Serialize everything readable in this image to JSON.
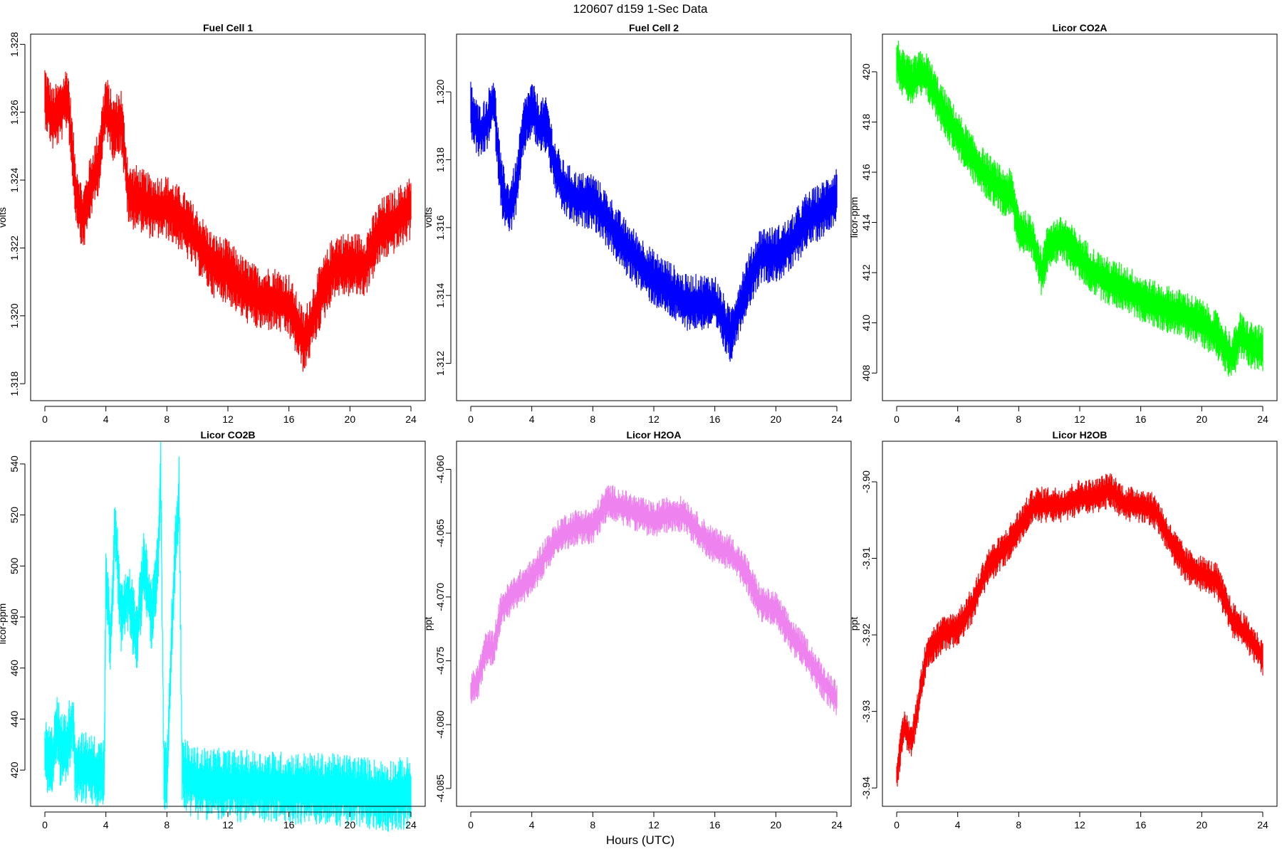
{
  "figure": {
    "title": "120607   d159   1-Sec Data",
    "xlabel": "Hours (UTC)"
  },
  "chart_data": [
    {
      "type": "line",
      "title": "Fuel Cell 1",
      "xlabel": "",
      "ylabel": "volts",
      "color": "#ff0000",
      "xlim": [
        0,
        24
      ],
      "ylim": [
        1.3175,
        1.3283
      ],
      "x_ticks": [
        0,
        4,
        8,
        12,
        16,
        20,
        24
      ],
      "y_ticks": [
        "1.318",
        "1.320",
        "1.322",
        "1.324",
        "1.326",
        "1.328"
      ],
      "grid": false,
      "series": [
        {
          "x": [
            0,
            0.5,
            1,
            1.5,
            2,
            2.5,
            3,
            3.5,
            4,
            4.5,
            5,
            5.5,
            6,
            7,
            8,
            9,
            10,
            11,
            12,
            13,
            14,
            15,
            16,
            17,
            18,
            19,
            20,
            21,
            22,
            23,
            24
          ],
          "values": [
            1.3265,
            1.3258,
            1.326,
            1.3265,
            1.3238,
            1.3228,
            1.3238,
            1.3245,
            1.3262,
            1.3255,
            1.3258,
            1.3235,
            1.3235,
            1.3232,
            1.3232,
            1.3228,
            1.3222,
            1.3215,
            1.3213,
            1.3208,
            1.3205,
            1.3205,
            1.3203,
            1.3192,
            1.3205,
            1.3215,
            1.3215,
            1.3215,
            1.3225,
            1.3228,
            1.3232
          ],
          "spread": 0.0008
        }
      ]
    },
    {
      "type": "line",
      "title": "Fuel Cell 2",
      "xlabel": "",
      "ylabel": "volts",
      "color": "#0000ff",
      "xlim": [
        0,
        24
      ],
      "ylim": [
        1.3109,
        1.3217
      ],
      "x_ticks": [
        0,
        4,
        8,
        12,
        16,
        20,
        24
      ],
      "y_ticks": [
        "1.312",
        "1.314",
        "1.316",
        "1.318",
        "1.320"
      ],
      "grid": false,
      "series": [
        {
          "x": [
            0,
            0.5,
            1,
            1.5,
            2,
            2.5,
            3,
            3.5,
            4,
            4.5,
            5,
            5.5,
            6,
            7,
            8,
            9,
            10,
            11,
            12,
            13,
            14,
            15,
            16,
            17,
            18,
            19,
            20,
            21,
            22,
            23,
            24
          ],
          "values": [
            1.3195,
            1.3188,
            1.319,
            1.3198,
            1.3172,
            1.3165,
            1.3172,
            1.319,
            1.3195,
            1.319,
            1.319,
            1.3178,
            1.3172,
            1.3168,
            1.3168,
            1.3162,
            1.3155,
            1.315,
            1.3145,
            1.3142,
            1.3138,
            1.3138,
            1.3138,
            1.3128,
            1.3142,
            1.3152,
            1.3152,
            1.3155,
            1.3162,
            1.3165,
            1.317
          ],
          "spread": 0.0007
        }
      ]
    },
    {
      "type": "line",
      "title": "Licor CO2A",
      "xlabel": "",
      "ylabel": "licor-ppm",
      "color": "#00ff00",
      "xlim": [
        0,
        24
      ],
      "ylim": [
        406.9,
        421.5
      ],
      "x_ticks": [
        0,
        4,
        8,
        12,
        16,
        20,
        24
      ],
      "y_ticks": [
        "408",
        "410",
        "412",
        "414",
        "416",
        "418",
        "420"
      ],
      "grid": false,
      "series": [
        {
          "x": [
            0,
            0.5,
            1,
            1.5,
            2,
            3,
            4,
            5,
            6,
            7,
            7.5,
            8,
            9,
            9.5,
            10,
            11,
            12,
            13,
            14,
            15,
            16,
            17,
            18,
            19,
            20,
            21,
            22,
            22.5,
            23,
            24
          ],
          "values": [
            420.5,
            419.8,
            419.6,
            419.9,
            419.8,
            418.5,
            417.5,
            416.5,
            415.8,
            415.2,
            415.2,
            413.8,
            413.2,
            412.0,
            413.2,
            413.3,
            412.6,
            412.0,
            411.6,
            411.4,
            411.0,
            410.7,
            410.5,
            410.3,
            410.0,
            409.5,
            408.6,
            409.5,
            409.2,
            408.9
          ],
          "spread": 0.8
        }
      ]
    },
    {
      "type": "line",
      "title": "Licor CO2B",
      "xlabel": "",
      "ylabel": "licor-ppm",
      "color": "#00ffff",
      "xlim": [
        0,
        24
      ],
      "ylim": [
        405.8,
        548.9
      ],
      "x_ticks": [
        0,
        4,
        8,
        12,
        16,
        20,
        24
      ],
      "y_ticks": [
        "420",
        "440",
        "460",
        "480",
        "500",
        "520",
        "540"
      ],
      "grid": false,
      "series": [
        {
          "x": [
            0,
            0.5,
            0.8,
            1,
            1.5,
            1.8,
            2,
            3,
            3.7,
            3.9,
            4,
            4.3,
            4.6,
            5,
            5.5,
            6,
            6.5,
            7,
            7.4,
            7.6,
            7.8,
            8,
            8.2,
            8.5,
            8.8,
            9,
            9.5,
            10,
            12,
            16,
            20,
            22,
            24
          ],
          "values": [
            425,
            423,
            440,
            428,
            430,
            440,
            422,
            420,
            418,
            420,
            500,
            470,
            515,
            480,
            490,
            470,
            500,
            480,
            500,
            535,
            420,
            415,
            455,
            500,
            530,
            420,
            416,
            415,
            414,
            413,
            412,
            410,
            411
          ],
          "spread": 12
        }
      ]
    },
    {
      "type": "line",
      "title": "Licor H2OA",
      "xlabel": "",
      "ylabel": "ppt",
      "color": "#ee82ee",
      "xlim": [
        0,
        24
      ],
      "ylim": [
        -4.0864,
        -4.0578
      ],
      "x_ticks": [
        0,
        4,
        8,
        12,
        16,
        20,
        24
      ],
      "y_ticks": [
        "-4.085",
        "-4.080",
        "-4.075",
        "-4.070",
        "-4.065",
        "-4.060"
      ],
      "grid": false,
      "series": [
        {
          "x": [
            0,
            0.5,
            1,
            1.5,
            2,
            3,
            4,
            5,
            6,
            7,
            8,
            9,
            10,
            11,
            12,
            13,
            14,
            15,
            16,
            17,
            18,
            19,
            20,
            21,
            22,
            23,
            24
          ],
          "values": [
            -4.0775,
            -4.0765,
            -4.074,
            -4.074,
            -4.071,
            -4.0695,
            -4.0685,
            -4.0665,
            -4.065,
            -4.0645,
            -4.0645,
            -4.0625,
            -4.063,
            -4.0635,
            -4.064,
            -4.0635,
            -4.0635,
            -4.065,
            -4.066,
            -4.0665,
            -4.068,
            -4.0705,
            -4.071,
            -4.073,
            -4.0745,
            -4.0765,
            -4.078
          ],
          "spread": 0.0012
        }
      ]
    },
    {
      "type": "line",
      "title": "Licor H2OB",
      "xlabel": "",
      "ylabel": "ppt",
      "color": "#ff0000",
      "xlim": [
        0,
        24
      ],
      "ylim": [
        -3.9424,
        -3.8947
      ],
      "x_ticks": [
        0,
        4,
        8,
        12,
        16,
        20,
        24
      ],
      "y_ticks": [
        "-3.94",
        "-3.93",
        "-3.92",
        "-3.91",
        "-3.90"
      ],
      "grid": false,
      "series": [
        {
          "x": [
            0,
            0.5,
            1,
            1.5,
            2,
            3,
            4,
            5,
            6,
            7,
            8,
            9,
            10,
            11,
            12,
            13,
            14,
            15,
            16,
            17,
            18,
            19,
            20,
            21,
            22,
            23,
            24
          ],
          "values": [
            -3.938,
            -3.932,
            -3.934,
            -3.928,
            -3.922,
            -3.92,
            -3.919,
            -3.916,
            -3.911,
            -3.909,
            -3.906,
            -3.903,
            -3.903,
            -3.903,
            -3.902,
            -3.902,
            -3.901,
            -3.903,
            -3.903,
            -3.904,
            -3.908,
            -3.911,
            -3.912,
            -3.913,
            -3.918,
            -3.92,
            -3.923
          ],
          "spread": 0.002
        }
      ]
    }
  ]
}
